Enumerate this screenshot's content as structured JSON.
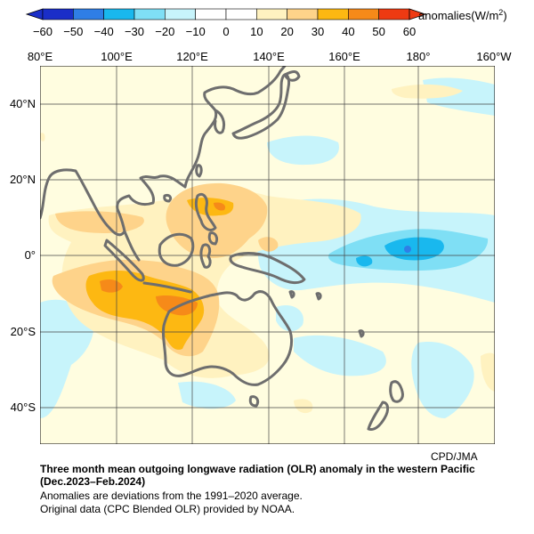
{
  "legend": {
    "title": "anomalies(W/m",
    "title_sup": "2",
    "title_end": ")",
    "ticks": [
      "−60",
      "−50",
      "−40",
      "−30",
      "−20",
      "−10",
      "0",
      "10",
      "20",
      "30",
      "40",
      "50",
      "60"
    ],
    "bins": [
      {
        "from": -60,
        "to": -50,
        "color": "#1a2ec8"
      },
      {
        "from": -50,
        "to": -40,
        "color": "#2f7ee6"
      },
      {
        "from": -40,
        "to": -30,
        "color": "#19b8ee"
      },
      {
        "from": -30,
        "to": -20,
        "color": "#7fdff5"
      },
      {
        "from": -20,
        "to": -10,
        "color": "#c7f4fb"
      },
      {
        "from": -10,
        "to": 0,
        "color": "#ffffff"
      },
      {
        "from": 0,
        "to": 10,
        "color": "#ffffff"
      },
      {
        "from": 10,
        "to": 20,
        "color": "#fff2c0"
      },
      {
        "from": 20,
        "to": 30,
        "color": "#fed38a"
      },
      {
        "from": 30,
        "to": 40,
        "color": "#fdb812"
      },
      {
        "from": 40,
        "to": 50,
        "color": "#f68a19"
      },
      {
        "from": 50,
        "to": 60,
        "color": "#ee3a12"
      }
    ]
  },
  "map": {
    "lon_labels": [
      "80°E",
      "100°E",
      "120°E",
      "140°E",
      "160°E",
      "180°",
      "160°W"
    ],
    "lat_labels": [
      "40°N",
      "20°N",
      "0°",
      "20°S",
      "40°S"
    ],
    "lon_range": [
      80,
      200
    ],
    "lat_range": [
      -50,
      50
    ],
    "ocean_color": "#fffde0",
    "coast_color": "#6e6e6e"
  },
  "credit": "CPD/JMA",
  "caption": {
    "title_line1": "Three month mean outgoing longwave radiation (OLR) anomaly in the western Pacific",
    "title_line2": "(Dec.2023–Feb.2024)",
    "note1": "Anomalies are deviations from the 1991–2020 average.",
    "note2": "Original data (CPC Blended OLR) provided by NOAA."
  }
}
